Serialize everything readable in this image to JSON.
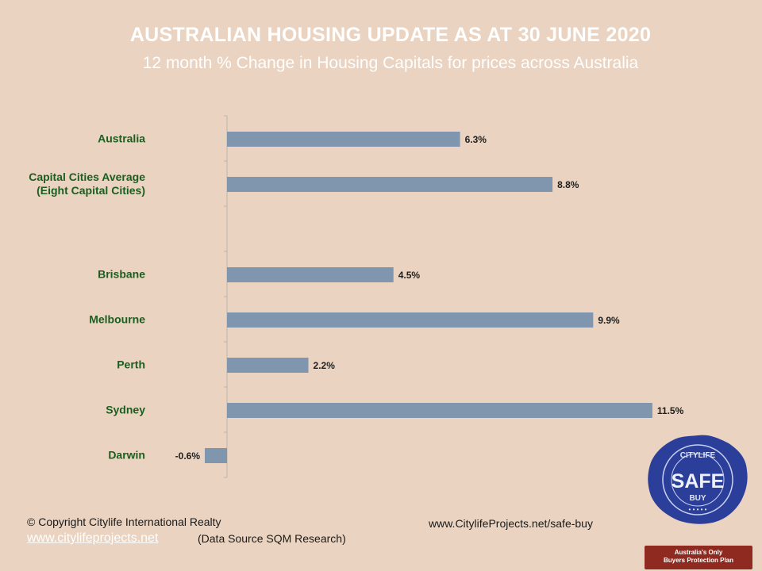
{
  "title": "AUSTRALIAN HOUSING UPDATE AS AT 30 JUNE 2020",
  "subtitle": "12 month % Change in Housing Capitals for prices across Australia",
  "chart_data": {
    "type": "bar",
    "orientation": "horizontal",
    "categories": [
      [
        "Australia"
      ],
      [
        "Capital Cities Average",
        "(Eight Capital Cities)"
      ],
      [
        ""
      ],
      [
        "Brisbane"
      ],
      [
        "Melbourne"
      ],
      [
        "Perth"
      ],
      [
        "Sydney"
      ],
      [
        "Darwin"
      ]
    ],
    "values": [
      6.3,
      8.8,
      null,
      4.5,
      9.9,
      2.2,
      11.5,
      -0.6
    ],
    "value_labels": [
      "6.3%",
      "8.8%",
      "",
      "4.5%",
      "9.9%",
      "2.2%",
      "11.5%",
      "-0.6%"
    ],
    "bar_color": "#7f96ae",
    "label_color": "#1b5e20",
    "grid": false,
    "legend": "none"
  },
  "footer": {
    "copyright": "© Copyright Citylife International  Realty",
    "website": "www.citylifeprojects.net",
    "source": "(Data Source SQM Research)",
    "url_right": "www.CitylifeProjects.net/safe-buy"
  },
  "badge": {
    "top": "CITYLIFE",
    "middle": "SAFE",
    "bottom": "BUY",
    "ribbon_line1": "Australia's Only",
    "ribbon_line2": "Buyers Protection Plan"
  }
}
